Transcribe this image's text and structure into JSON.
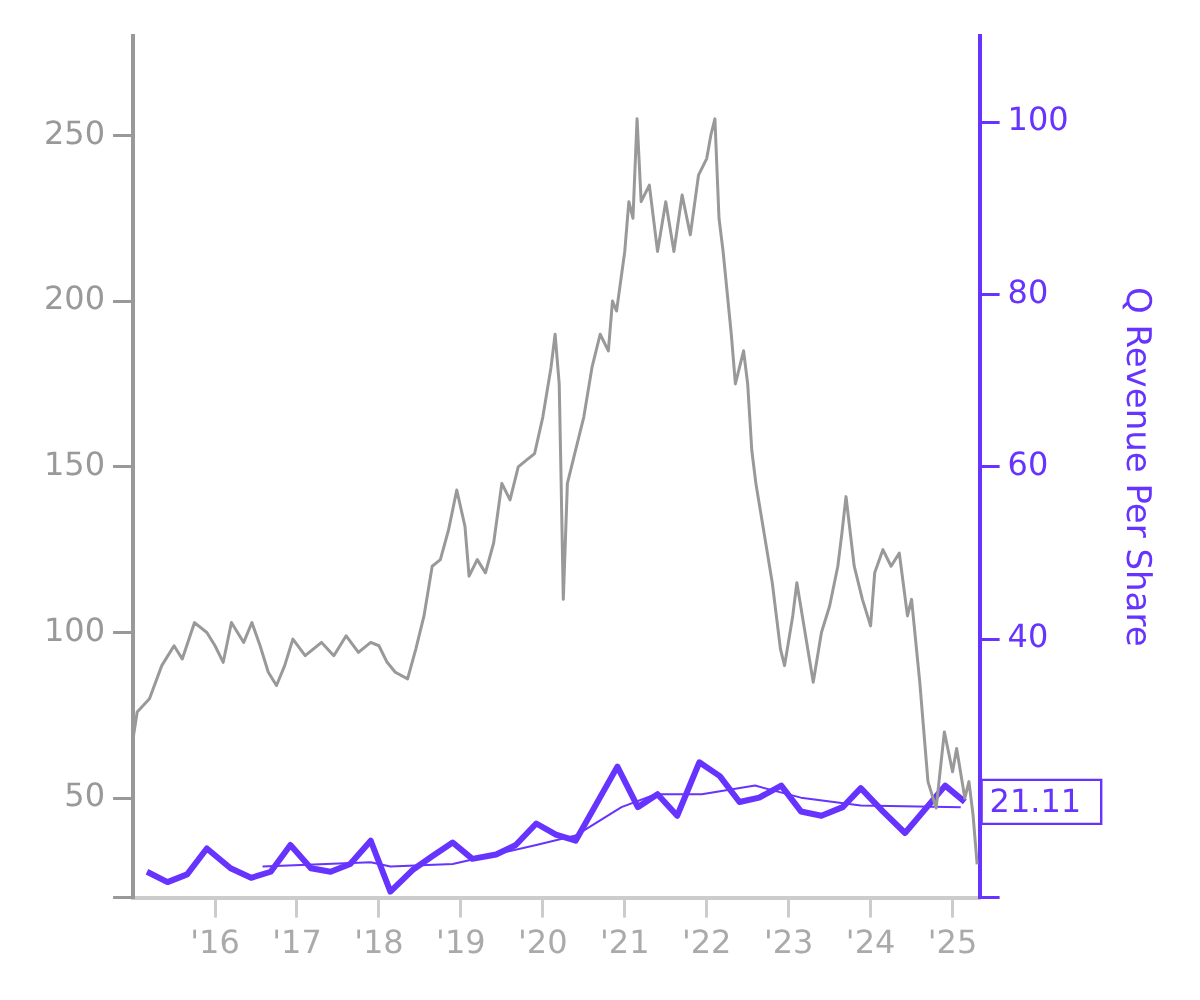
{
  "chart_data": {
    "type": "line",
    "y2label": "Q Revenue Per Share",
    "xlim": [
      2015.0,
      2025.33
    ],
    "xticks": [
      {
        "value": 2016,
        "label": "'16"
      },
      {
        "value": 2017,
        "label": "'17"
      },
      {
        "value": 2018,
        "label": "'18"
      },
      {
        "value": 2019,
        "label": "'19"
      },
      {
        "value": 2020,
        "label": "'20"
      },
      {
        "value": 2021,
        "label": "'21"
      },
      {
        "value": 2022,
        "label": "'22"
      },
      {
        "value": 2023,
        "label": "'23"
      },
      {
        "value": 2024,
        "label": "'24"
      },
      {
        "value": 2025,
        "label": "'25"
      }
    ],
    "ylim": [
      20,
      280
    ],
    "yticks": [
      {
        "value": 20,
        "label": null
      },
      50,
      100,
      150,
      200,
      250
    ],
    "y2lim": [
      10,
      110
    ],
    "y2ticks": [
      {
        "value": 10,
        "label": null
      },
      {
        "value": 21.11,
        "label": "21.11"
      },
      40,
      60,
      80,
      100
    ],
    "grid": false,
    "legend": false,
    "marker": "none",
    "series": [
      {
        "color": "#999999",
        "x": [
          2015.0,
          2015.05,
          2015.2,
          2015.35,
          2015.5,
          2015.6,
          2015.75,
          2015.9,
          2016.0,
          2016.1,
          2016.2,
          2016.35,
          2016.45,
          2016.55,
          2016.65,
          2016.75,
          2016.85,
          2016.95,
          2017.1,
          2017.3,
          2017.45,
          2017.6,
          2017.75,
          2017.9,
          2018.0,
          2018.1,
          2018.2,
          2018.35,
          2018.45,
          2018.55,
          2018.65,
          2018.75,
          2018.85,
          2018.95,
          2019.05,
          2019.1,
          2019.2,
          2019.3,
          2019.4,
          2019.5,
          2019.6,
          2019.7,
          2019.8,
          2019.9,
          2020.0,
          2020.1,
          2020.15,
          2020.2,
          2020.22,
          2020.25,
          2020.3,
          2020.4,
          2020.5,
          2020.6,
          2020.7,
          2020.8,
          2020.85,
          2020.9,
          2021.0,
          2021.05,
          2021.1,
          2021.15,
          2021.2,
          2021.3,
          2021.4,
          2021.5,
          2021.6,
          2021.7,
          2021.8,
          2021.9,
          2022.0,
          2022.05,
          2022.1,
          2022.15,
          2022.2,
          2022.3,
          2022.35,
          2022.45,
          2022.5,
          2022.55,
          2022.6,
          2022.7,
          2022.8,
          2022.9,
          2022.95,
          2023.05,
          2023.1,
          2023.2,
          2023.3,
          2023.4,
          2023.5,
          2023.6,
          2023.65,
          2023.7,
          2023.8,
          2023.9,
          2024.0,
          2024.05,
          2024.15,
          2024.25,
          2024.35,
          2024.45,
          2024.5,
          2024.6,
          2024.7,
          2024.8,
          2024.9,
          2025.0,
          2025.05,
          2025.15,
          2025.2,
          2025.25,
          2025.3
        ],
        "values": [
          68,
          76,
          80,
          90,
          96,
          92,
          103,
          100,
          96,
          91,
          103,
          97,
          103,
          96,
          88,
          84,
          90,
          98,
          93,
          97,
          93,
          99,
          94,
          97,
          96,
          91,
          88,
          86,
          95,
          105,
          120,
          122,
          131,
          143,
          132,
          117,
          122,
          118,
          127,
          145,
          140,
          150,
          152,
          154,
          165,
          180,
          190,
          175,
          150,
          110,
          145,
          155,
          165,
          180,
          190,
          185,
          200,
          197,
          215,
          230,
          225,
          255,
          230,
          235,
          215,
          230,
          215,
          232,
          220,
          238,
          243,
          250,
          255,
          225,
          215,
          190,
          175,
          185,
          175,
          155,
          145,
          130,
          115,
          95,
          90,
          105,
          115,
          100,
          85,
          100,
          108,
          120,
          130,
          141,
          120,
          110,
          102,
          118,
          125,
          120,
          124,
          105,
          110,
          85,
          55,
          47,
          70,
          58,
          65,
          50,
          55,
          45,
          30
        ]
      },
      {
        "color": "#6633ff",
        "axis": "y2",
        "x": [
          2015.17,
          2015.42,
          2015.66,
          2015.9,
          2016.19,
          2016.44,
          2016.68,
          2016.92,
          2017.17,
          2017.41,
          2017.65,
          2017.9,
          2018.14,
          2018.41,
          2018.65,
          2018.9,
          2019.14,
          2019.43,
          2019.67,
          2019.92,
          2020.16,
          2020.4,
          2020.91,
          2021.16,
          2021.4,
          2021.64,
          2021.91,
          2022.16,
          2022.4,
          2022.64,
          2022.91,
          2023.15,
          2023.4,
          2023.66,
          2023.88,
          2024.15,
          2024.42,
          2024.91,
          2025.15
        ],
        "values": [
          13.0,
          11.8,
          12.7,
          15.7,
          13.4,
          12.3,
          13.0,
          16.1,
          13.4,
          13.0,
          13.9,
          16.6,
          10.7,
          13.2,
          14.8,
          16.4,
          14.5,
          15.0,
          16.1,
          18.6,
          17.3,
          16.6,
          25.2,
          20.5,
          22.0,
          19.5,
          25.7,
          24.1,
          21.1,
          21.6,
          23.0,
          20.0,
          19.5,
          20.5,
          22.7,
          20.0,
          17.5,
          23.0,
          21.11
        ]
      },
      {
        "color": "#6633ff",
        "axis": "y2",
        "x": [
          2016.58,
          2017.9,
          2018.14,
          2018.9,
          2019.92,
          2020.4,
          2020.96,
          2021.38,
          2021.94,
          2022.59,
          2023.15,
          2023.88,
          2025.1
        ],
        "values": [
          13.6,
          14.1,
          13.6,
          13.9,
          16.1,
          17.2,
          20.5,
          22.0,
          22.0,
          23.0,
          21.6,
          20.7,
          20.5
        ]
      }
    ]
  }
}
